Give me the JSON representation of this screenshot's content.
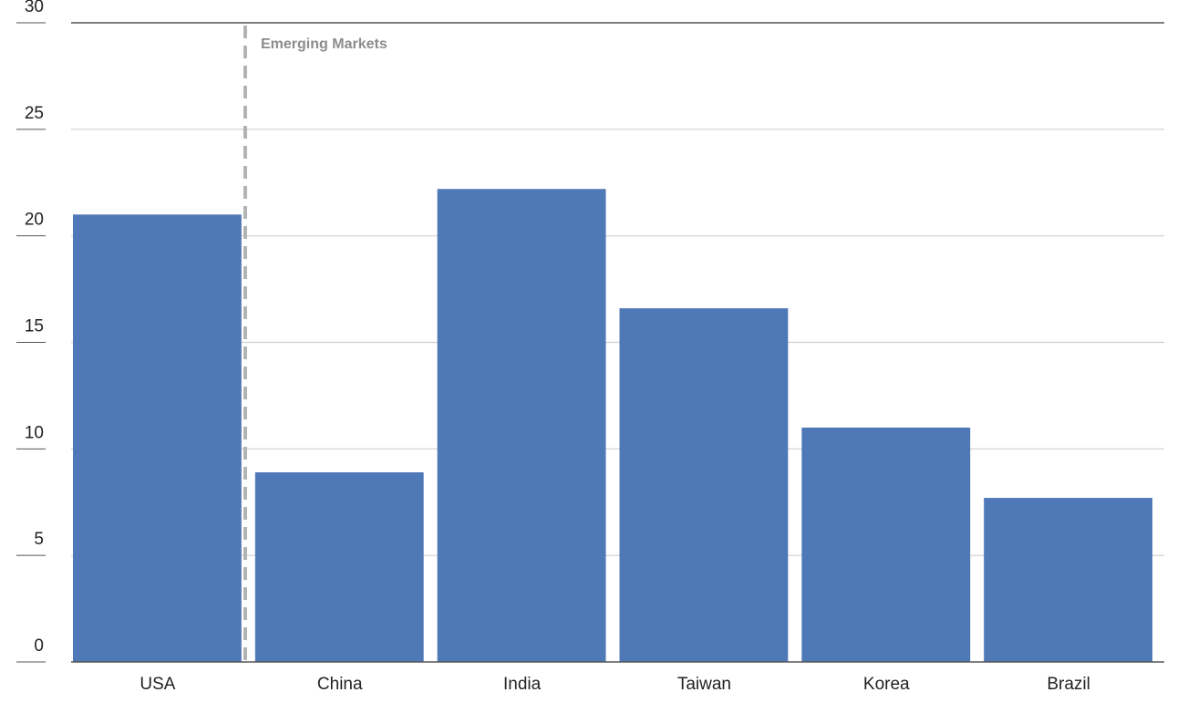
{
  "chart_data": {
    "type": "bar",
    "categories": [
      "USA",
      "China",
      "India",
      "Taiwan",
      "Korea",
      "Brazil"
    ],
    "values": [
      21.0,
      8.9,
      22.2,
      16.6,
      11.0,
      7.7
    ],
    "color": "#4f78b7",
    "ylim": [
      0,
      30
    ],
    "yticks": [
      0,
      5,
      10,
      15,
      20,
      25,
      30
    ],
    "grid": true,
    "annotation": "Emerging Markets"
  }
}
